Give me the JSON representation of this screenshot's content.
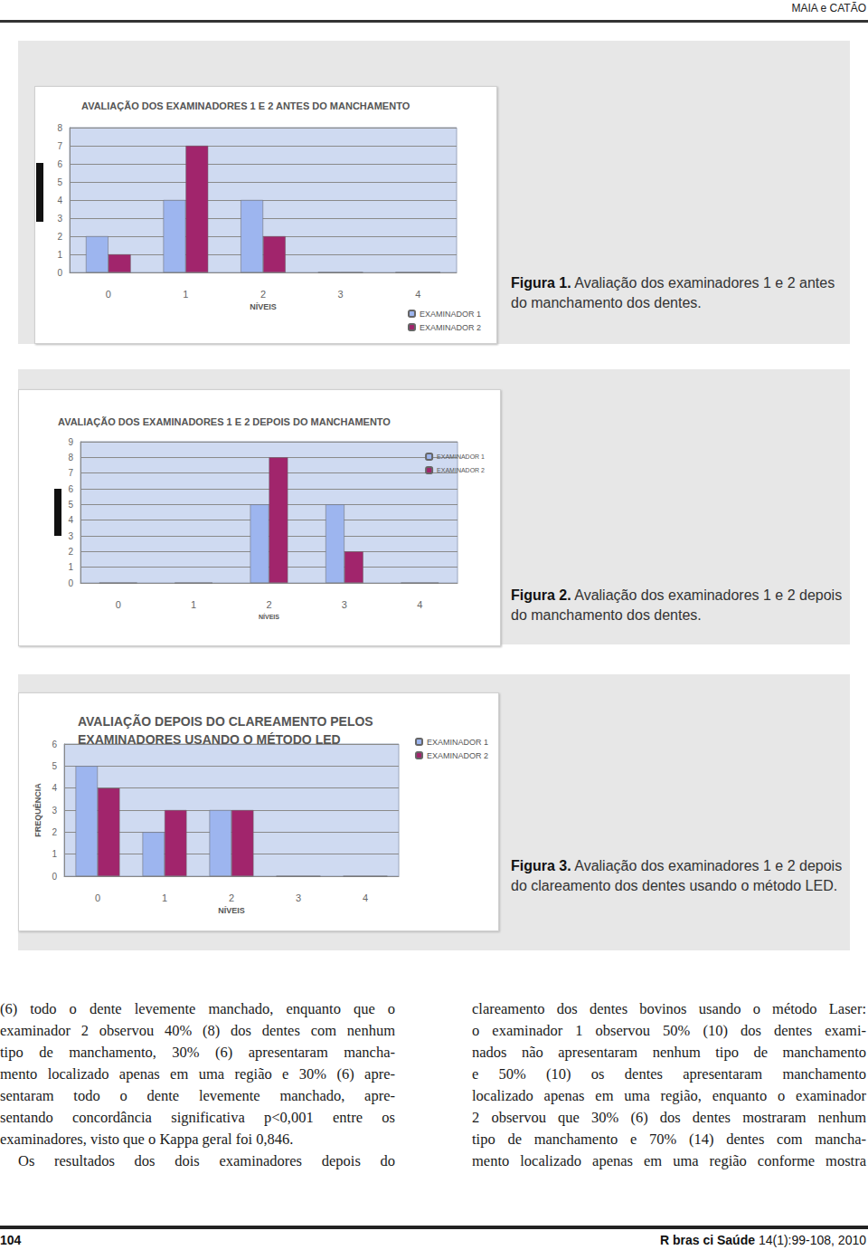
{
  "header": "MAIA e CATÃO",
  "chart_data": [
    {
      "type": "bar",
      "title": "AVALIAÇÃO DOS EXAMINADORES 1 E 2 ANTES DO MANCHAMENTO",
      "categories": [
        "0",
        "1",
        "2",
        "3",
        "4"
      ],
      "xlabel": "NÍVEIS",
      "series": [
        {
          "name": "EXAMINADOR 1",
          "color": "#9db5ef",
          "values": [
            2,
            4,
            4,
            0,
            0
          ]
        },
        {
          "name": "EXAMINADOR 2",
          "color": "#a1256c",
          "values": [
            1,
            7,
            2,
            0,
            0
          ]
        }
      ],
      "ylim": [
        0,
        8
      ],
      "yticks": [
        0,
        1,
        2,
        3,
        4,
        5,
        6,
        7,
        8
      ],
      "grid": true,
      "legend": "bottom-right"
    },
    {
      "type": "bar",
      "title": "AVALIAÇÃO DOS EXAMINADORES 1 E 2 DEPOIS DO MANCHAMENTO",
      "categories": [
        "0",
        "1",
        "2",
        "3",
        "4"
      ],
      "xlabel": "NÍVEIS",
      "series": [
        {
          "name": "EXAMINADOR 1",
          "color": "#9db5ef",
          "values": [
            0,
            0,
            5,
            5,
            0
          ]
        },
        {
          "name": "EXAMINADOR 2",
          "color": "#a1256c",
          "values": [
            0,
            0,
            8,
            2,
            0
          ]
        }
      ],
      "ylim": [
        0,
        9
      ],
      "yticks": [
        0,
        1,
        2,
        3,
        4,
        5,
        6,
        7,
        8,
        9
      ],
      "grid": true,
      "legend": "top-right"
    },
    {
      "type": "bar",
      "title": "AVALIAÇÃO DEPOIS DO CLAREAMENTO PELOS EXAMINADORES USANDO O MÉTODO LED",
      "categories": [
        "0",
        "1",
        "2",
        "3",
        "4"
      ],
      "xlabel": "NÍVEIS",
      "ylabel": "FREQUÊNCIA",
      "series": [
        {
          "name": "EXAMINADOR 1",
          "color": "#9db5ef",
          "values": [
            5,
            2,
            3,
            0,
            0
          ]
        },
        {
          "name": "EXAMINADOR 2",
          "color": "#a1256c",
          "values": [
            4,
            3,
            3,
            0,
            0
          ]
        }
      ],
      "ylim": [
        0,
        6
      ],
      "yticks": [
        0,
        1,
        2,
        3,
        4,
        5,
        6
      ],
      "grid": true,
      "legend": "top-right"
    }
  ],
  "captions": [
    {
      "label": "Figura 1.",
      "text": "Avaliação dos examinadores 1 e 2 antes do manchamento dos dentes."
    },
    {
      "label": "Figura 2.",
      "text": "Avaliação dos examinadores 1 e 2 depois do manchamento dos dentes."
    },
    {
      "label": "Figura 3.",
      "text": "Avaliação dos examinadores 1 e 2 depois do clareamento dos dentes usando o método LED."
    }
  ],
  "columns": [
    [
      [
        "(6) todo o dente levemente manchado, enquanto que o",
        "examinador 2 observou 40% (8) dos dentes com nenhum",
        "tipo de manchamento, 30% (6) apresentaram mancha-",
        "mento localizado apenas em uma região e 30% (6) apre-",
        "sentaram todo o dente levemente manchado, apre-",
        "sentando concordância significativa p<0,001 entre os",
        "examinadores, visto que o Kappa geral foi 0,846."
      ],
      [
        "Os resultados dos dois examinadores depois do"
      ]
    ],
    [
      [
        "clareamento dos dentes bovinos usando o método Laser:",
        "o examinador 1 observou 50% (10) dos dentes exami-",
        "nados não apresentaram nenhum tipo de manchamento",
        "e 50% (10) os dentes apresentaram manchamento",
        "localizado apenas em uma região, enquanto o examinador",
        "2 observou que 30% (6) dos dentes mostraram nenhum",
        "tipo de manchamento e 70% (14) dentes com mancha-",
        "mento localizado apenas em uma região conforme mostra"
      ]
    ]
  ],
  "footer": {
    "page": "104",
    "journal": "R bras ci Saúde",
    "citation": "14(1):99-108, 2010"
  }
}
